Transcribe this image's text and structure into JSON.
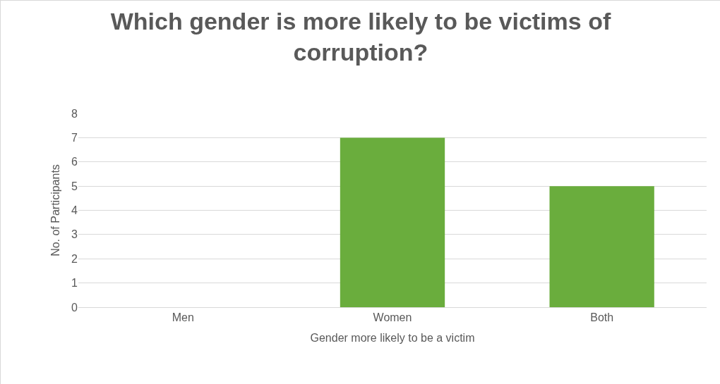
{
  "chart_data": {
    "type": "bar",
    "title": "Which gender is more likely to be victims of corruption?",
    "xlabel": "Gender more likely to be a victim",
    "ylabel": "No. of Participants",
    "categories": [
      "Men",
      "Women",
      "Both"
    ],
    "values": [
      0,
      7,
      5
    ],
    "color": "#6aad3d",
    "ylim": [
      0,
      8
    ],
    "yticks": [
      0,
      1,
      2,
      3,
      4,
      5,
      6,
      7,
      8
    ],
    "grid": "y",
    "legend": false
  }
}
